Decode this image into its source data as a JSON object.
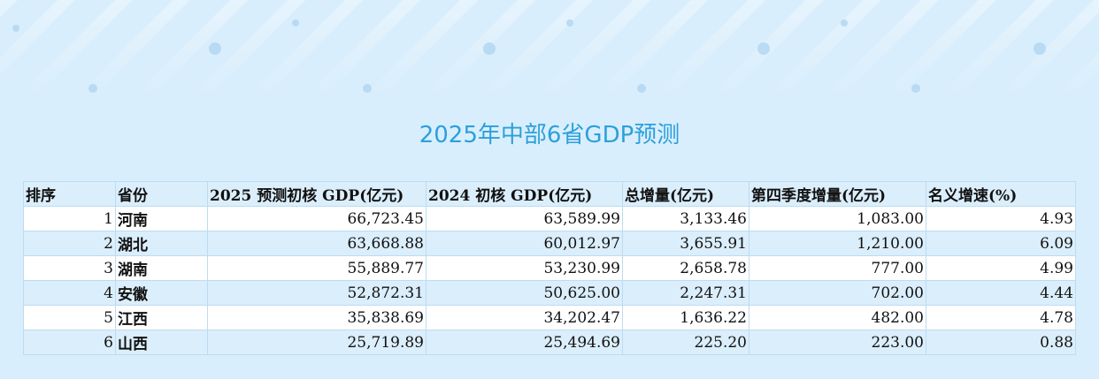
{
  "title": "2025年中部6省GDP预测",
  "table": {
    "headers": [
      "排序",
      "省份",
      "2025 预测初核 GDP(亿元)",
      "2024 初核 GDP(亿元)",
      "总增量(亿元)",
      "第四季度增量(亿元)",
      "名义增速(%)"
    ],
    "rows": [
      [
        "1",
        "河南",
        "66,723.45",
        "63,589.99",
        "3,133.46",
        "1,083.00",
        "4.93"
      ],
      [
        "2",
        "湖北",
        "63,668.88",
        "60,012.97",
        "3,655.91",
        "1,210.00",
        "6.09"
      ],
      [
        "3",
        "湖南",
        "55,889.77",
        "53,230.99",
        "2,658.78",
        "777.00",
        "4.99"
      ],
      [
        "4",
        "安徽",
        "52,872.31",
        "50,625.00",
        "2,247.31",
        "702.00",
        "4.44"
      ],
      [
        "5",
        "江西",
        "35,838.69",
        "34,202.47",
        "1,636.22",
        "482.00",
        "4.78"
      ],
      [
        "6",
        "山西",
        "25,719.89",
        "25,494.69",
        "225.20",
        "223.00",
        "0.88"
      ]
    ]
  }
}
